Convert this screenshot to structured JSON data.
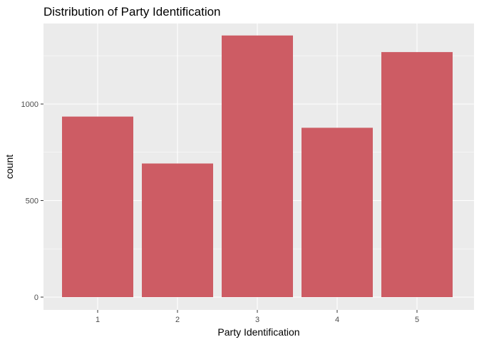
{
  "chart_data": {
    "type": "bar",
    "title": "Distribution of Party Identification",
    "xlabel": "Party Identification",
    "ylabel": "count",
    "categories": [
      "1",
      "2",
      "3",
      "4",
      "5"
    ],
    "values": [
      935,
      692,
      1355,
      877,
      1269
    ],
    "ylim": [
      0,
      1400
    ],
    "yticks": [
      0,
      500,
      1000
    ],
    "ytick_labels": [
      "0",
      "500",
      "1000"
    ],
    "grid": true,
    "bar_color": "#cd5c64",
    "panel_color": "#ebebeb"
  }
}
